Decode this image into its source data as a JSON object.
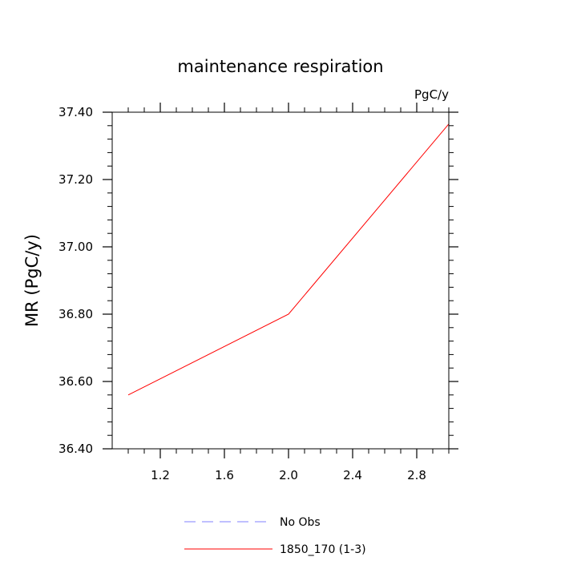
{
  "chart_data": {
    "type": "line",
    "title": "maintenance respiration",
    "units_label": "PgC/y",
    "xlabel": "",
    "ylabel": "MR  (PgC/y)",
    "xlim": [
      0.9,
      3.0
    ],
    "ylim": [
      36.4,
      37.4
    ],
    "xticks": [
      1.2,
      1.6,
      2.0,
      2.4,
      2.8
    ],
    "xtick_labels": [
      "1.2",
      "1.6",
      "2.0",
      "2.4",
      "2.8"
    ],
    "yticks": [
      36.4,
      36.6,
      36.8,
      37.0,
      37.2,
      37.4
    ],
    "ytick_labels": [
      "36.40",
      "36.60",
      "36.80",
      "37.00",
      "37.20",
      "37.40"
    ],
    "grid": false,
    "legend_position": "bottom",
    "series": [
      {
        "name": "1850_170 (1-3)",
        "color": "#ff0000",
        "dash": "solid",
        "x": [
          1.0,
          2.0,
          3.0
        ],
        "y": [
          36.56,
          36.8,
          37.365
        ]
      }
    ],
    "legend": [
      {
        "label": "No Obs",
        "color": "#8080ff",
        "dash": "dashed"
      },
      {
        "label": "1850_170 (1-3)",
        "color": "#ff0000",
        "dash": "solid"
      }
    ]
  }
}
